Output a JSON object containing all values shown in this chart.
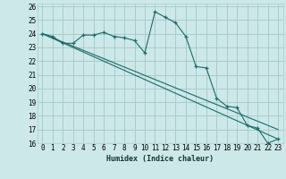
{
  "xlabel": "Humidex (Indice chaleur)",
  "bg_color": "#cce8e8",
  "grid_color": "#aacccc",
  "line_color": "#1a6b6b",
  "marker_color": "#1a6b6b",
  "xlim": [
    -0.5,
    23.5
  ],
  "ylim": [
    16,
    26.2
  ],
  "xticks": [
    0,
    1,
    2,
    3,
    4,
    5,
    6,
    7,
    8,
    9,
    10,
    11,
    12,
    13,
    14,
    15,
    16,
    17,
    18,
    19,
    20,
    21,
    22,
    23
  ],
  "yticks": [
    16,
    17,
    18,
    19,
    20,
    21,
    22,
    23,
    24,
    25,
    26
  ],
  "curve1_x": [
    0,
    1,
    2,
    3,
    4,
    5,
    6,
    7,
    8,
    9,
    10,
    11,
    12,
    13,
    14,
    15,
    16,
    17,
    18,
    19,
    20,
    21,
    22,
    23
  ],
  "curve1_y": [
    24.0,
    23.8,
    23.3,
    23.3,
    23.9,
    23.9,
    24.1,
    23.8,
    23.7,
    23.5,
    22.6,
    25.6,
    25.2,
    24.8,
    23.8,
    21.6,
    21.5,
    19.3,
    18.7,
    18.6,
    17.3,
    17.1,
    16.0,
    16.3
  ],
  "line1_x": [
    0,
    23
  ],
  "line1_y": [
    24.0,
    16.3
  ],
  "line2_x": [
    0,
    23
  ],
  "line2_y": [
    24.0,
    17.0
  ],
  "fontsize_xlabel": 6,
  "fontsize_tick": 5.5
}
